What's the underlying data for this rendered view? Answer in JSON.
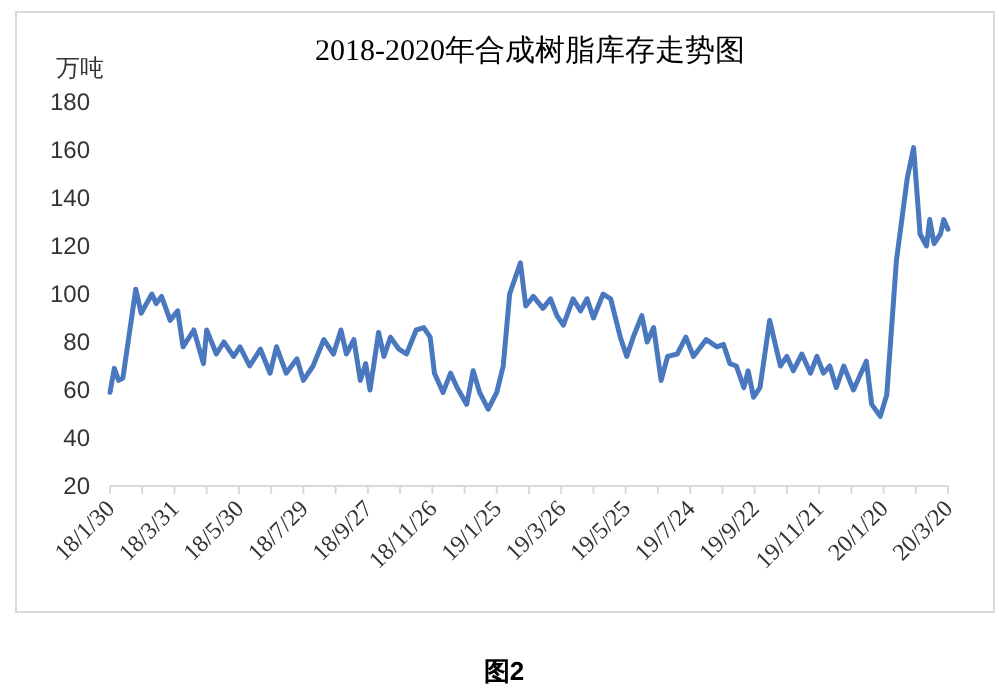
{
  "chart_data": {
    "type": "line",
    "title": "2018-2020年合成树脂库存走势图",
    "ylabel": "万吨",
    "annotations": [
      "图2"
    ],
    "series": [
      {
        "color": "#4a78be",
        "x": [
          "2018-01-30",
          "2018-02-03",
          "2018-02-07",
          "2018-02-11",
          "2018-02-23",
          "2018-02-28",
          "2018-03-10",
          "2018-03-14",
          "2018-03-19",
          "2018-03-27",
          "2018-04-03",
          "2018-04-08",
          "2018-04-18",
          "2018-04-27",
          "2018-04-30",
          "2018-05-09",
          "2018-05-16",
          "2018-05-25",
          "2018-05-31",
          "2018-06-09",
          "2018-06-19",
          "2018-06-28",
          "2018-07-04",
          "2018-07-13",
          "2018-07-23",
          "2018-07-29",
          "2018-08-07",
          "2018-08-17",
          "2018-08-26",
          "2018-09-02",
          "2018-09-07",
          "2018-09-14",
          "2018-09-20",
          "2018-09-25",
          "2018-09-29",
          "2018-10-07",
          "2018-10-12",
          "2018-10-18",
          "2018-10-26",
          "2018-11-02",
          "2018-11-11",
          "2018-11-18",
          "2018-11-24",
          "2018-11-28",
          "2018-12-06",
          "2018-12-13",
          "2018-12-19",
          "2018-12-28",
          "2019-01-03",
          "2019-01-09",
          "2019-01-17",
          "2019-01-25",
          "2019-01-31",
          "2019-02-06",
          "2019-02-16",
          "2019-02-21",
          "2019-02-28",
          "2019-03-09",
          "2019-03-16",
          "2019-03-22",
          "2019-03-28",
          "2019-04-06",
          "2019-04-13",
          "2019-04-19",
          "2019-04-25",
          "2019-05-04",
          "2019-05-11",
          "2019-05-20",
          "2019-05-26",
          "2019-06-01",
          "2019-06-09",
          "2019-06-14",
          "2019-06-20",
          "2019-06-27",
          "2019-07-03",
          "2019-07-12",
          "2019-07-20",
          "2019-07-27",
          "2019-08-08",
          "2019-08-18",
          "2019-08-24",
          "2019-08-30",
          "2019-09-05",
          "2019-09-12",
          "2019-09-16",
          "2019-09-21",
          "2019-09-27",
          "2019-10-06",
          "2019-10-16",
          "2019-10-22",
          "2019-10-28",
          "2019-11-05",
          "2019-11-13",
          "2019-11-19",
          "2019-11-25",
          "2019-12-01",
          "2019-12-07",
          "2019-12-14",
          "2019-12-23",
          "2020-01-04",
          "2020-01-09",
          "2020-01-17",
          "2020-01-23",
          "2020-02-01",
          "2020-02-11",
          "2020-02-17",
          "2020-02-23",
          "2020-02-29",
          "2020-03-03",
          "2020-03-07",
          "2020-03-13",
          "2020-03-16",
          "2020-03-20"
        ],
        "values": [
          59,
          69,
          64,
          65,
          102,
          92,
          100,
          96,
          99,
          89,
          93,
          78,
          85,
          71,
          85,
          75,
          80,
          74,
          78,
          70,
          77,
          67,
          78,
          67,
          73,
          64,
          70,
          81,
          75,
          85,
          75,
          81,
          64,
          71,
          60,
          84,
          74,
          82,
          77,
          75,
          85,
          86,
          82,
          67,
          59,
          67,
          61,
          54,
          68,
          59,
          52,
          59,
          70,
          100,
          113,
          95,
          99,
          94,
          98,
          91,
          87,
          98,
          93,
          98,
          90,
          100,
          98,
          82,
          74,
          82,
          91,
          80,
          86,
          64,
          74,
          75,
          82,
          74,
          81,
          78,
          79,
          71,
          70,
          61,
          68,
          57,
          61,
          89,
          70,
          74,
          68,
          75,
          67,
          74,
          67,
          70,
          61,
          70,
          60,
          72,
          54,
          49,
          58,
          114,
          148,
          161,
          125,
          120,
          131,
          121,
          125,
          131,
          127
        ]
      }
    ],
    "xlim": [
      "2018-01-30",
      "2020-03-20"
    ],
    "xticks": [
      {
        "value": "2018-01-30",
        "label": "18/1/30"
      },
      {
        "value": "2018-03-01",
        "label": null
      },
      {
        "value": "2018-03-31",
        "label": "18/3/31"
      },
      {
        "value": "2018-04-30",
        "label": null
      },
      {
        "value": "2018-05-30",
        "label": "18/5/30"
      },
      {
        "value": "2018-06-29",
        "label": null
      },
      {
        "value": "2018-07-29",
        "label": "18/7/29"
      },
      {
        "value": "2018-08-28",
        "label": null
      },
      {
        "value": "2018-09-27",
        "label": "18/9/27"
      },
      {
        "value": "2018-10-27",
        "label": null
      },
      {
        "value": "2018-11-26",
        "label": "18/11/26"
      },
      {
        "value": "2018-12-26",
        "label": null
      },
      {
        "value": "2019-01-25",
        "label": "19/1/25"
      },
      {
        "value": "2019-02-24",
        "label": null
      },
      {
        "value": "2019-03-26",
        "label": "19/3/26"
      },
      {
        "value": "2019-04-25",
        "label": null
      },
      {
        "value": "2019-05-25",
        "label": "19/5/25"
      },
      {
        "value": "2019-06-24",
        "label": null
      },
      {
        "value": "2019-07-24",
        "label": "19/7/24"
      },
      {
        "value": "2019-08-23",
        "label": null
      },
      {
        "value": "2019-09-22",
        "label": "19/9/22"
      },
      {
        "value": "2019-10-22",
        "label": null
      },
      {
        "value": "2019-11-21",
        "label": "19/11/21"
      },
      {
        "value": "2019-12-21",
        "label": null
      },
      {
        "value": "2020-01-20",
        "label": "20/1/20"
      },
      {
        "value": "2020-02-19",
        "label": null
      },
      {
        "value": "2020-03-20",
        "label": "20/3/20"
      }
    ],
    "ylim": [
      20,
      180
    ],
    "yticks": [
      20,
      40,
      60,
      80,
      100,
      120,
      140,
      160,
      180
    ],
    "grid": false,
    "marker": "none",
    "line_style": "solid"
  }
}
